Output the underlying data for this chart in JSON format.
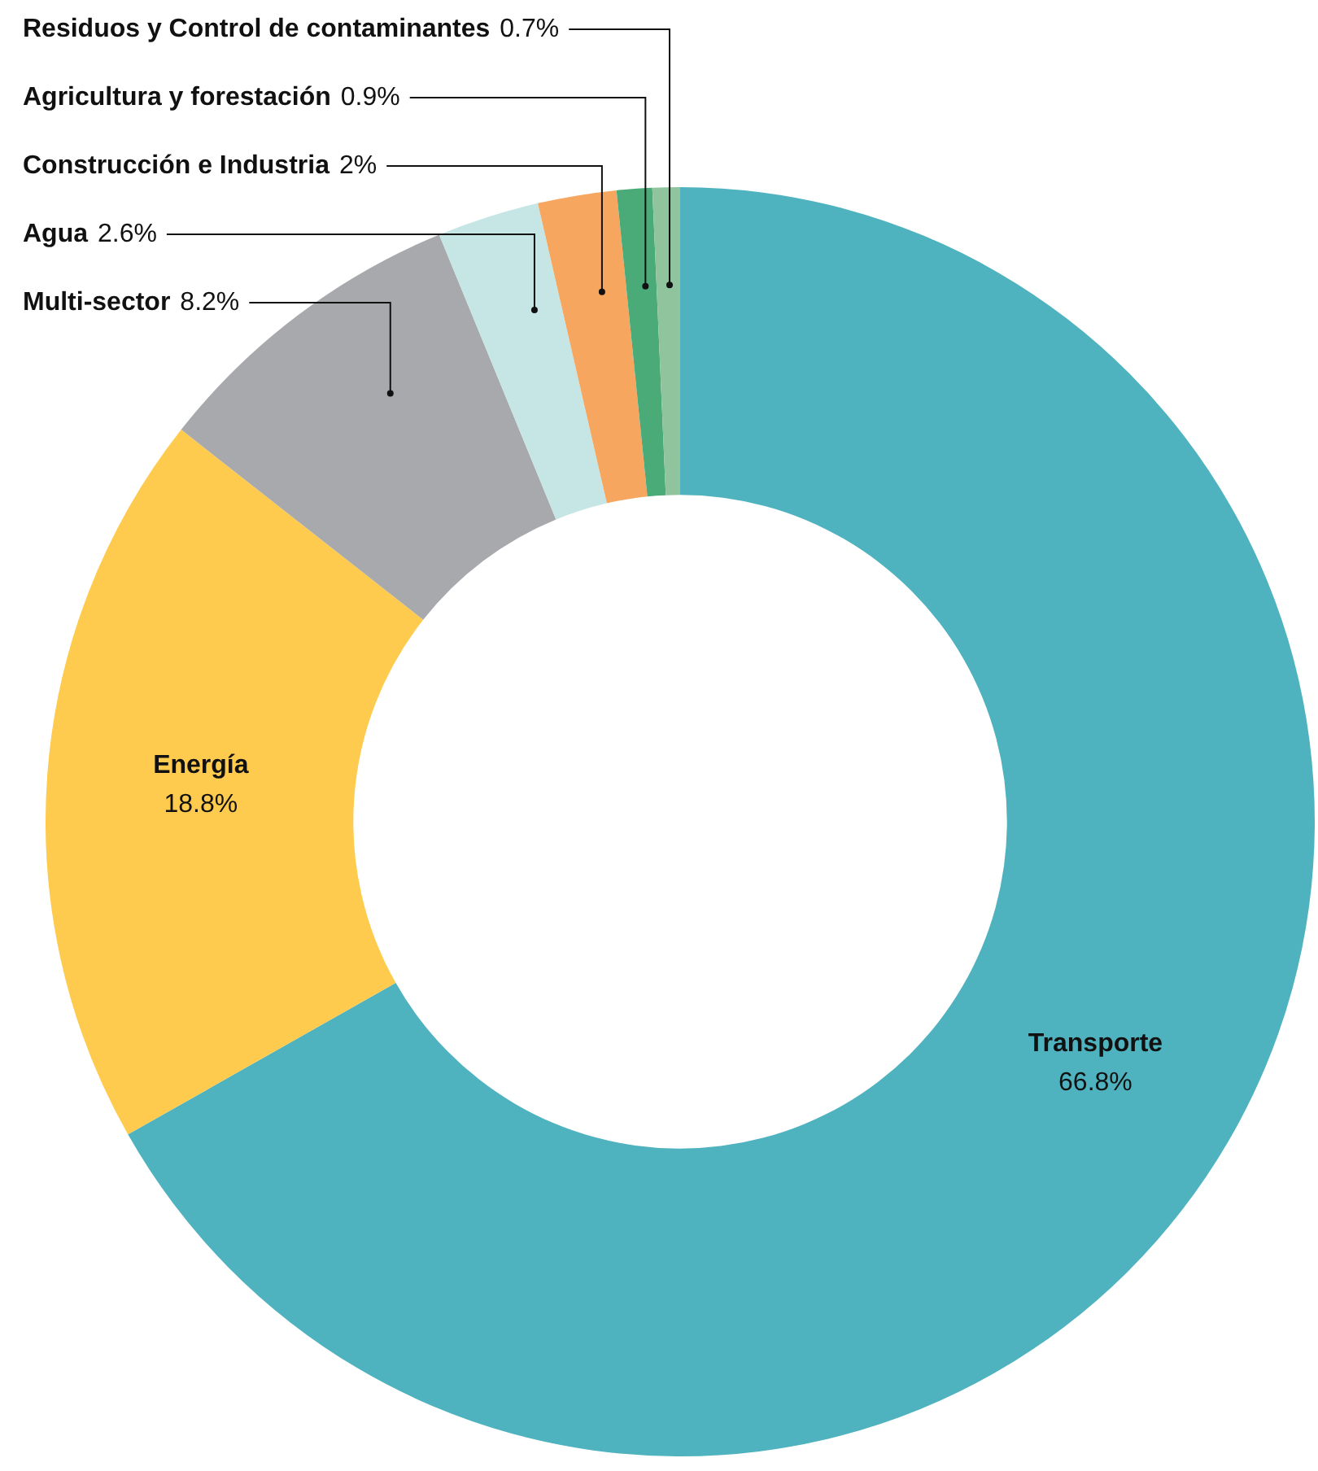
{
  "chart_data": {
    "type": "donut",
    "categories": [
      "Transporte",
      "Energía",
      "Multi-sector",
      "Agua",
      "Construcción e Industria",
      "Agricultura y forestación",
      "Residuos y Control de contaminantes"
    ],
    "values": [
      66.8,
      18.8,
      8.2,
      2.6,
      2,
      0.9,
      0.7
    ],
    "value_labels": [
      "66.8%",
      "18.8%",
      "8.2%",
      "2.6%",
      "2%",
      "0.9%",
      "0.7%"
    ],
    "colors": [
      "#4fb3bf",
      "#ffcb4f",
      "#a7a9ac",
      "#c5e6e4",
      "#f7a660",
      "#4aab78",
      "#8fc49c"
    ],
    "legend": false
  }
}
